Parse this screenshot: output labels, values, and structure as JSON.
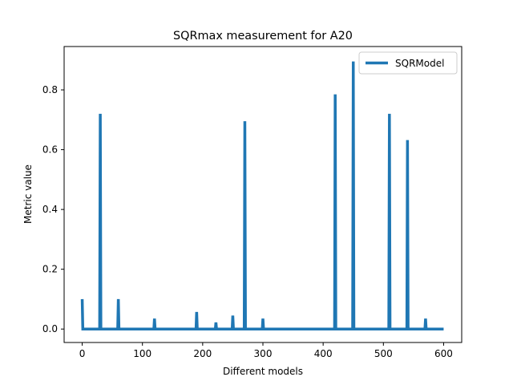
{
  "chart_data": {
    "type": "line",
    "title": "SQRmax measurement for A20",
    "xlabel": "Different models",
    "ylabel": "Metric value",
    "xlim": [
      -30,
      630
    ],
    "ylim": [
      -0.045,
      0.945
    ],
    "xticks": [
      0,
      100,
      200,
      300,
      400,
      500,
      600
    ],
    "xtick_labels": [
      "0",
      "100",
      "200",
      "300",
      "400",
      "500",
      "600"
    ],
    "yticks": [
      0.0,
      0.2,
      0.4,
      0.6,
      0.8
    ],
    "ytick_labels": [
      "0.0",
      "0.2",
      "0.4",
      "0.6",
      "0.8"
    ],
    "grid": false,
    "legend_position": "upper-right",
    "series": [
      {
        "name": "SQRModel",
        "color": "#1f77b4",
        "x": [
          0,
          1,
          29,
          30,
          31,
          59,
          60,
          61,
          119,
          120,
          121,
          189,
          190,
          191,
          221,
          222,
          223,
          249,
          250,
          251,
          269,
          270,
          271,
          299,
          300,
          301,
          419,
          420,
          421,
          449,
          450,
          451,
          509,
          510,
          511,
          539,
          540,
          541,
          569,
          570,
          571,
          600
        ],
        "y": [
          0.1,
          0,
          0,
          0.72,
          0,
          0,
          0.1,
          0,
          0,
          0.035,
          0,
          0,
          0.057,
          0,
          0,
          0.022,
          0,
          0,
          0.045,
          0,
          0,
          0.695,
          0,
          0,
          0.035,
          0,
          0,
          0.785,
          0,
          0,
          0.895,
          0,
          0,
          0.72,
          0,
          0,
          0.632,
          0,
          0,
          0.035,
          0,
          0
        ]
      }
    ]
  }
}
